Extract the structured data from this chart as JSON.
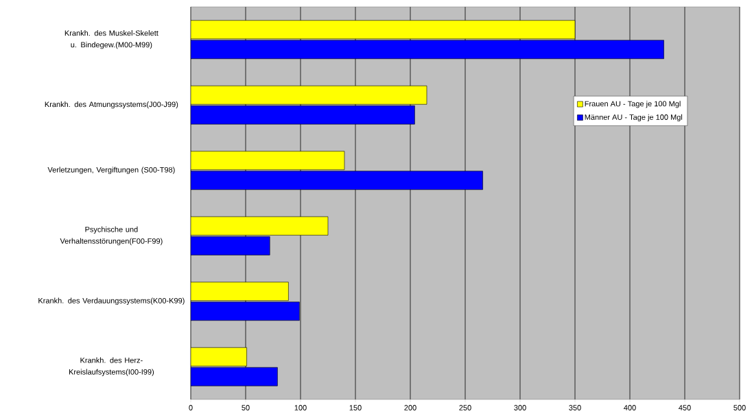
{
  "chart_data": {
    "type": "bar",
    "orientation": "horizontal",
    "categories": [
      "Krankh. des Muskel-Skelett u. Bindegew.(M00-M99)",
      "Krankh. des Atmungssystems(J00-J99)",
      "Verletzungen, Vergiftungen (S00-T98)",
      "Psychische und Verhaltensstörungen(F00-F99)",
      "Krankh. des Verdauungssystems(K00-K99)",
      "Krankh. des Herz-Kreislaufsystems(I00-I99)"
    ],
    "series": [
      {
        "name": "Frauen AU - Tage je 100 Mgl",
        "color": "#ffff00",
        "values": [
          350,
          215,
          140,
          125,
          89,
          51
        ]
      },
      {
        "name": "Männer AU - Tage je 100 Mgl",
        "color": "#0000ff",
        "values": [
          431,
          204,
          266,
          72,
          99,
          79
        ]
      }
    ],
    "xlim": [
      0,
      500
    ],
    "xticks": [
      0,
      50,
      100,
      150,
      200,
      250,
      300,
      350,
      400,
      450,
      500
    ],
    "grid": "x",
    "legend": "right"
  }
}
